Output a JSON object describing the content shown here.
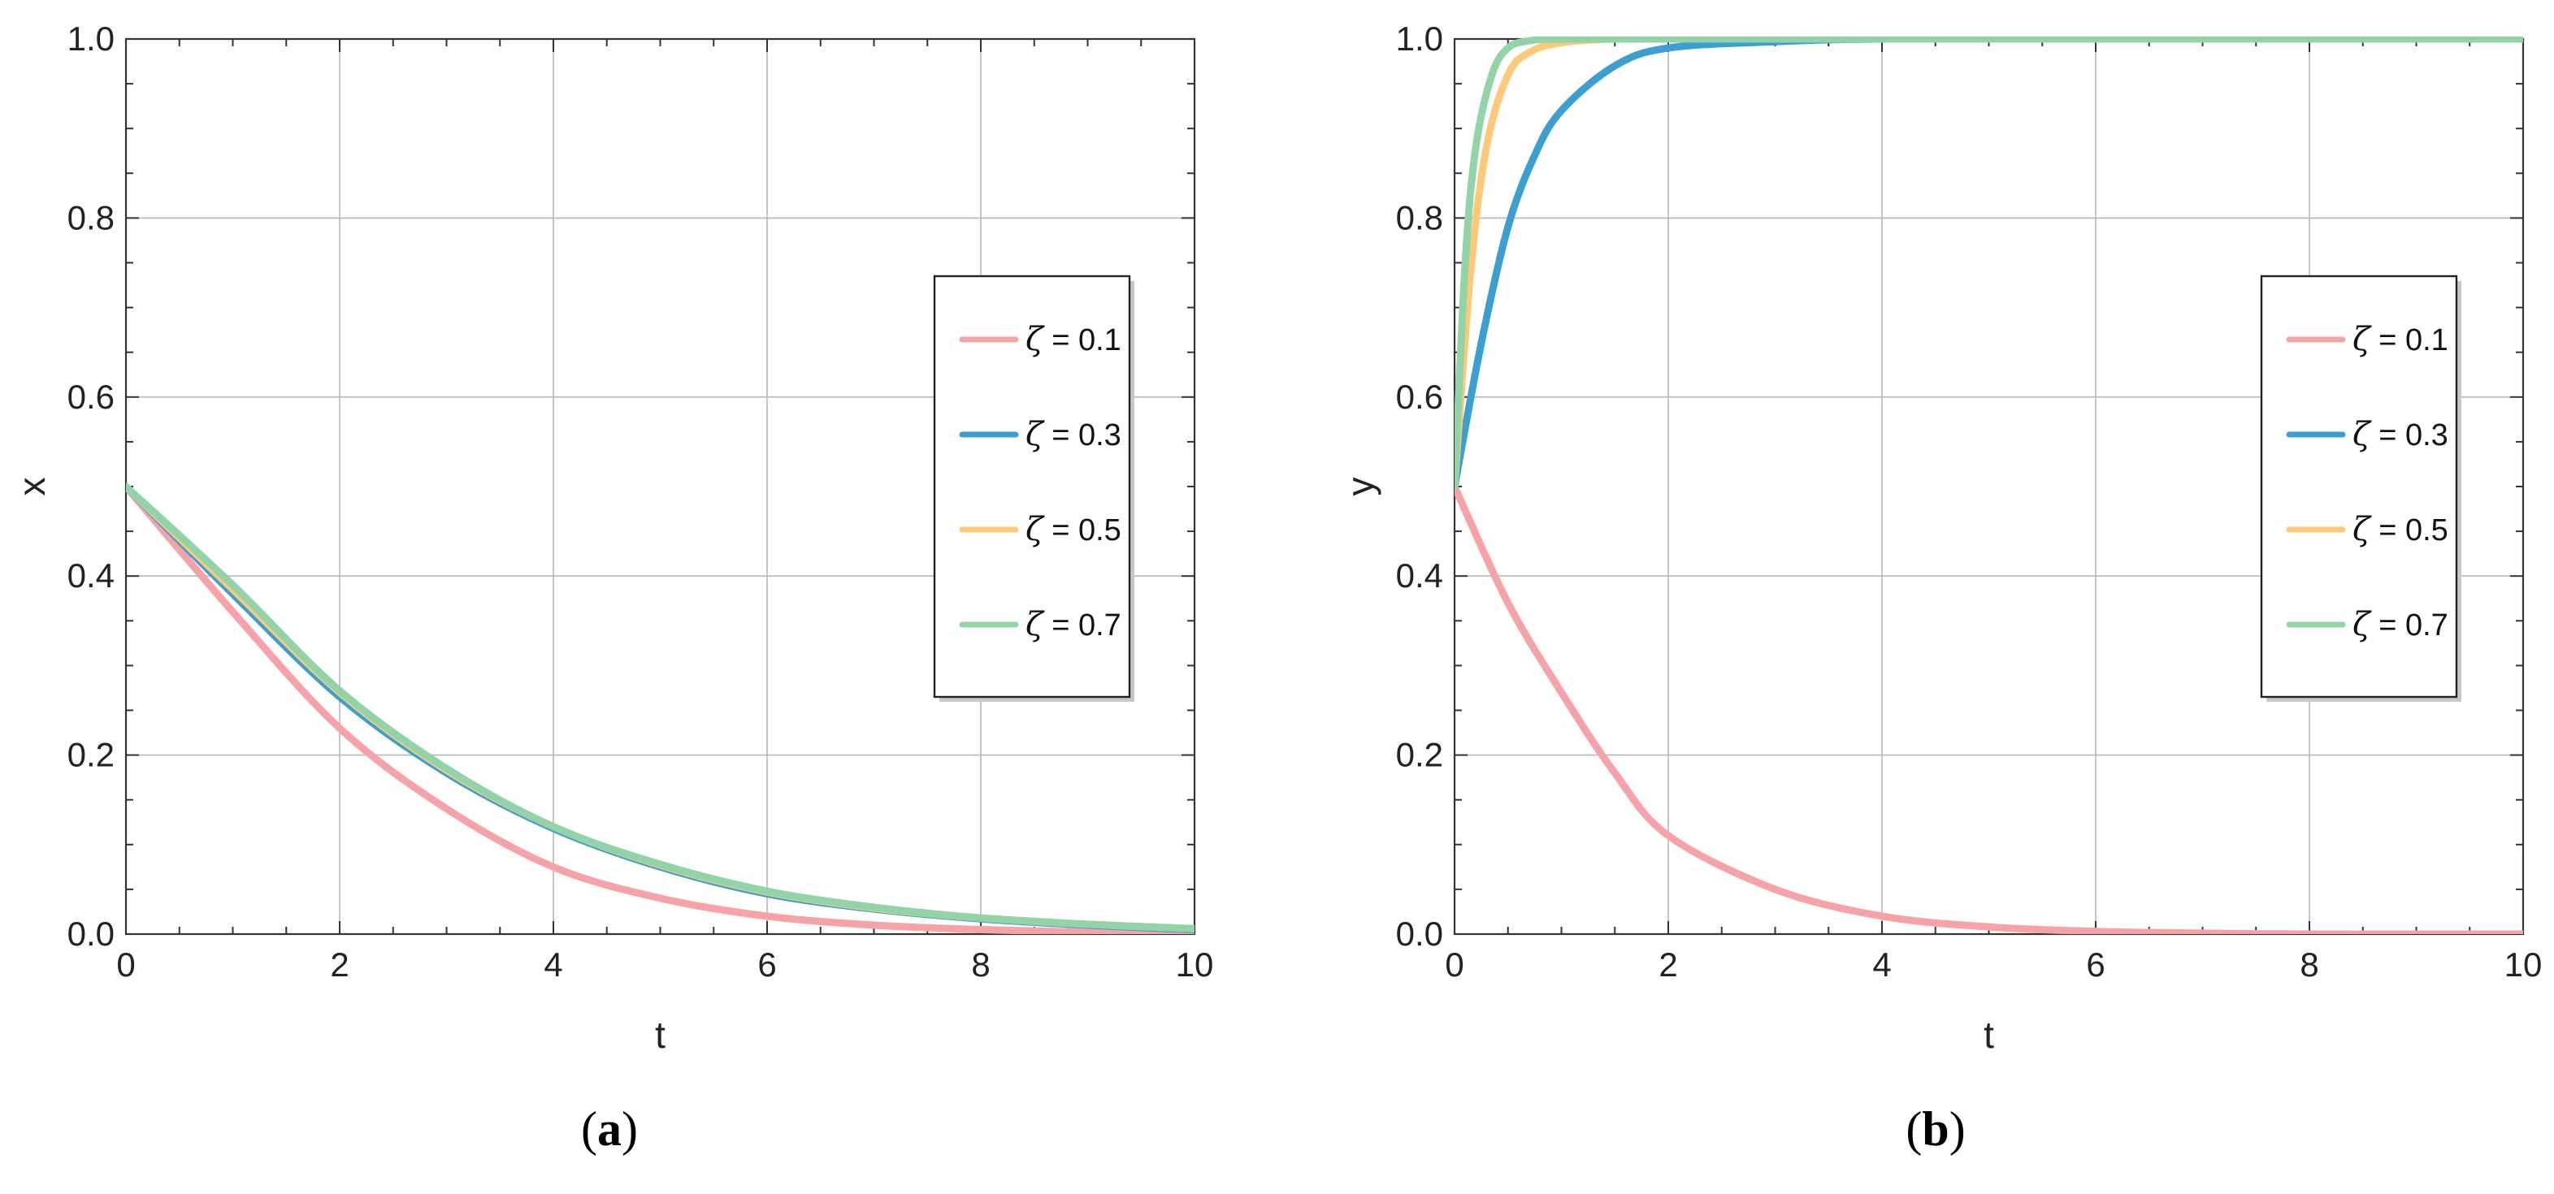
{
  "colors": {
    "zeta_0_1": "#f5a3a8",
    "zeta_0_3": "#3b9fd0",
    "zeta_0_5": "#fcc97a",
    "zeta_0_7": "#92d3a8"
  },
  "chart_data": [
    {
      "type": "line",
      "xlabel": "t",
      "ylabel": "x",
      "xlim": [
        0,
        10
      ],
      "ylim": [
        0,
        1
      ],
      "xticks": [
        "0",
        "2",
        "4",
        "6",
        "8",
        "10"
      ],
      "yticks": [
        "0.0",
        "0.2",
        "0.4",
        "0.6",
        "0.8",
        "1.0"
      ],
      "grid": true,
      "legend_position": "right",
      "caption": {
        "open": "(",
        "letter": "a",
        "close": ")"
      },
      "series": [
        {
          "name": "ζ = 0.1",
          "color_key": "zeta_0_1",
          "x": [
            0,
            1,
            2,
            3,
            4,
            5,
            6,
            7,
            8,
            9,
            10
          ],
          "y": [
            0.5,
            0.36,
            0.23,
            0.14,
            0.075,
            0.04,
            0.02,
            0.01,
            0.005,
            0.002,
            0.001
          ]
        },
        {
          "name": "ζ = 0.3",
          "color_key": "zeta_0_3",
          "x": [
            0,
            1,
            2,
            3,
            4,
            5,
            6,
            7,
            8,
            9,
            10
          ],
          "y": [
            0.5,
            0.38,
            0.265,
            0.18,
            0.118,
            0.075,
            0.045,
            0.028,
            0.017,
            0.01,
            0.005
          ]
        },
        {
          "name": "ζ = 0.5",
          "color_key": "zeta_0_5",
          "x": [
            0,
            1,
            2,
            3,
            4,
            5,
            6,
            7,
            8,
            9,
            10
          ],
          "y": [
            0.5,
            0.385,
            0.27,
            0.183,
            0.12,
            0.077,
            0.047,
            0.029,
            0.018,
            0.011,
            0.006
          ]
        },
        {
          "name": "ζ = 0.7",
          "color_key": "zeta_0_7",
          "x": [
            0,
            1,
            2,
            3,
            4,
            5,
            6,
            7,
            8,
            9,
            10
          ],
          "y": [
            0.5,
            0.39,
            0.272,
            0.185,
            0.12,
            0.078,
            0.048,
            0.03,
            0.018,
            0.011,
            0.006
          ]
        }
      ]
    },
    {
      "type": "line",
      "xlabel": "t",
      "ylabel": "y",
      "xlim": [
        0,
        10
      ],
      "ylim": [
        0,
        1
      ],
      "xticks": [
        "0",
        "2",
        "4",
        "6",
        "8",
        "10"
      ],
      "yticks": [
        "0.0",
        "0.2",
        "0.4",
        "0.6",
        "0.8",
        "1.0"
      ],
      "grid": true,
      "legend_position": "right",
      "caption": {
        "open": "(",
        "letter": "b",
        "close": ")"
      },
      "series": [
        {
          "name": "ζ = 0.1",
          "color_key": "zeta_0_1",
          "x": [
            0,
            0.5,
            1,
            1.5,
            2,
            3,
            4,
            5,
            6,
            7,
            8,
            9,
            10
          ],
          "y": [
            0.5,
            0.37,
            0.27,
            0.18,
            0.11,
            0.05,
            0.02,
            0.008,
            0.003,
            0.001,
            0.0,
            0.0,
            0.0
          ]
        },
        {
          "name": "ζ = 0.3",
          "color_key": "zeta_0_3",
          "x": [
            0,
            0.25,
            0.5,
            0.75,
            1,
            1.5,
            2,
            3,
            4,
            6,
            8,
            10
          ],
          "y": [
            0.5,
            0.66,
            0.79,
            0.87,
            0.92,
            0.97,
            0.99,
            0.997,
            1.0,
            1.0,
            1.0,
            1.0
          ]
        },
        {
          "name": "ζ = 0.5",
          "color_key": "zeta_0_5",
          "x": [
            0,
            0.15,
            0.3,
            0.5,
            0.7,
            1.0,
            1.5,
            2,
            4,
            6,
            8,
            10
          ],
          "y": [
            0.5,
            0.74,
            0.88,
            0.96,
            0.985,
            0.996,
            1.0,
            1.0,
            1.0,
            1.0,
            1.0,
            1.0
          ]
        },
        {
          "name": "ζ = 0.7",
          "color_key": "zeta_0_7",
          "x": [
            0,
            0.1,
            0.2,
            0.35,
            0.5,
            0.7,
            1.0,
            2,
            4,
            6,
            8,
            10
          ],
          "y": [
            0.5,
            0.75,
            0.88,
            0.96,
            0.99,
            0.998,
            1.0,
            1.0,
            1.0,
            1.0,
            1.0,
            1.0
          ]
        }
      ]
    }
  ]
}
